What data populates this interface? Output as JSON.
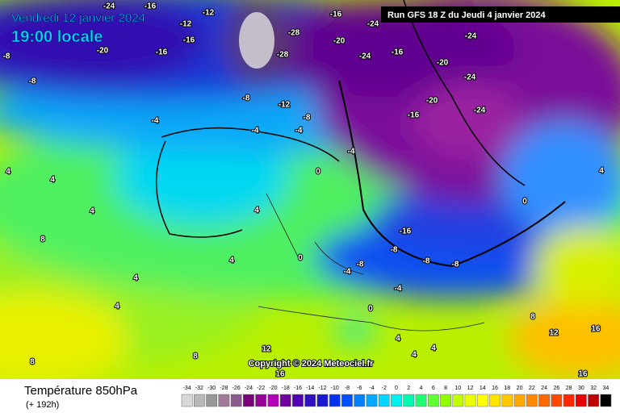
{
  "header": {
    "date": "Vendredi 12 janvier 2024",
    "time": "19:00 locale"
  },
  "run_info": "Run GFS 18 Z du Jeudi 4 janvier 2024",
  "copyright": "Copyright © 2024 Meteociel.fr",
  "legend": {
    "title": "Température 850hPa",
    "subtitle": "(+ 192h)",
    "ticks": [
      "-34",
      "-32",
      "-30",
      "-28",
      "-26",
      "-24",
      "-22",
      "-20",
      "-18",
      "-16",
      "-14",
      "-12",
      "-10",
      "-8",
      "-6",
      "-4",
      "-2",
      "0",
      "2",
      "4",
      "6",
      "8",
      "10",
      "12",
      "14",
      "16",
      "18",
      "20",
      "22",
      "24",
      "26",
      "28",
      "30",
      "32",
      "34"
    ],
    "colors": [
      "#d8d8d8",
      "#b8b8b8",
      "#989898",
      "#a07898",
      "#8a5a8a",
      "#7a007a",
      "#960096",
      "#b400b4",
      "#7000a0",
      "#5000b0",
      "#3010c0",
      "#1818d0",
      "#0030f0",
      "#0050ff",
      "#0080ff",
      "#00a8ff",
      "#00d4ff",
      "#00f0f0",
      "#00f8b0",
      "#20ff70",
      "#60ff30",
      "#90ff00",
      "#c0ff00",
      "#e8ff00",
      "#ffff00",
      "#ffe400",
      "#ffc800",
      "#ffa800",
      "#ff8800",
      "#ff6800",
      "#ff4800",
      "#ff2800",
      "#e80000",
      "#c00000",
      "#000000"
    ]
  },
  "map": {
    "labels": [
      "-24",
      "-16",
      "-12",
      "-12",
      "-16",
      "-20",
      "-16",
      "-8",
      "-8",
      "-28",
      "-28",
      "-20",
      "-16",
      "-24",
      "-24",
      "-16",
      "-20",
      "-24",
      "-24",
      "-24",
      "-20",
      "-16",
      "-8",
      "-12",
      "-8",
      "-4",
      "-4",
      "-4",
      "-4",
      "4",
      "4",
      "4",
      "8",
      "4",
      "4",
      "4",
      "4",
      "0",
      "0",
      "-16",
      "-8",
      "-8",
      "-8",
      "-4",
      "0",
      "4",
      "4",
      "4",
      "8",
      "8",
      "12",
      "16",
      "12",
      "16",
      "16",
      "8",
      "0",
      "4",
      "-4",
      "-8"
    ]
  }
}
